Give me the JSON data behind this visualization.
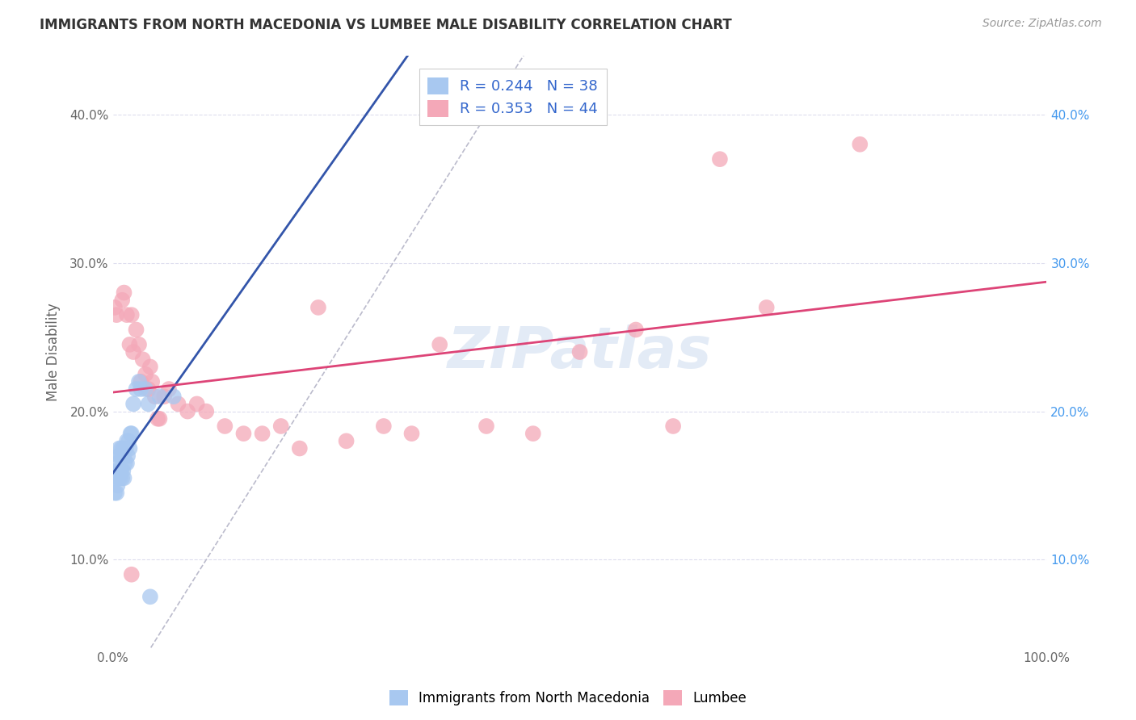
{
  "title": "IMMIGRANTS FROM NORTH MACEDONIA VS LUMBEE MALE DISABILITY CORRELATION CHART",
  "source": "Source: ZipAtlas.com",
  "ylabel": "Male Disability",
  "legend_labels": [
    "Immigrants from North Macedonia",
    "Lumbee"
  ],
  "r_north_mac": 0.244,
  "n_north_mac": 38,
  "r_lumbee": 0.353,
  "n_lumbee": 44,
  "xlim": [
    0.0,
    1.0
  ],
  "ylim": [
    0.04,
    0.44
  ],
  "ytick_vals": [
    0.1,
    0.2,
    0.3,
    0.4
  ],
  "ytick_labels": [
    "10.0%",
    "20.0%",
    "30.0%",
    "40.0%"
  ],
  "xtick_bottom_labels": [
    "0.0%",
    "100.0%"
  ],
  "color_north_mac": "#a8c8f0",
  "color_lumbee": "#f4a8b8",
  "line_color_north_mac": "#3355aa",
  "line_color_lumbee": "#dd4477",
  "diag_line_color": "#bbbbcc",
  "watermark": "ZIPatlas",
  "background_color": "#ffffff",
  "right_tick_color": "#4499ee",
  "north_mac_x": [
    0.002,
    0.003,
    0.004,
    0.004,
    0.005,
    0.005,
    0.006,
    0.006,
    0.007,
    0.007,
    0.008,
    0.008,
    0.009,
    0.009,
    0.01,
    0.01,
    0.011,
    0.011,
    0.012,
    0.012,
    0.013,
    0.014,
    0.015,
    0.015,
    0.016,
    0.017,
    0.018,
    0.019,
    0.02,
    0.022,
    0.025,
    0.028,
    0.03,
    0.035,
    0.038,
    0.05,
    0.065,
    0.04
  ],
  "north_mac_y": [
    0.145,
    0.155,
    0.145,
    0.16,
    0.15,
    0.165,
    0.155,
    0.17,
    0.16,
    0.175,
    0.155,
    0.17,
    0.16,
    0.175,
    0.155,
    0.17,
    0.16,
    0.175,
    0.155,
    0.17,
    0.165,
    0.175,
    0.165,
    0.18,
    0.17,
    0.18,
    0.175,
    0.185,
    0.185,
    0.205,
    0.215,
    0.22,
    0.215,
    0.215,
    0.205,
    0.21,
    0.21,
    0.075
  ],
  "lumbee_x": [
    0.002,
    0.004,
    0.01,
    0.012,
    0.015,
    0.018,
    0.02,
    0.022,
    0.025,
    0.028,
    0.03,
    0.032,
    0.035,
    0.038,
    0.04,
    0.042,
    0.045,
    0.048,
    0.05,
    0.055,
    0.06,
    0.07,
    0.08,
    0.09,
    0.1,
    0.12,
    0.14,
    0.16,
    0.18,
    0.2,
    0.22,
    0.25,
    0.29,
    0.32,
    0.35,
    0.4,
    0.45,
    0.5,
    0.56,
    0.6,
    0.65,
    0.7,
    0.8,
    0.02
  ],
  "lumbee_y": [
    0.27,
    0.265,
    0.275,
    0.28,
    0.265,
    0.245,
    0.265,
    0.24,
    0.255,
    0.245,
    0.22,
    0.235,
    0.225,
    0.215,
    0.23,
    0.22,
    0.21,
    0.195,
    0.195,
    0.21,
    0.215,
    0.205,
    0.2,
    0.205,
    0.2,
    0.19,
    0.185,
    0.185,
    0.19,
    0.175,
    0.27,
    0.18,
    0.19,
    0.185,
    0.245,
    0.19,
    0.185,
    0.24,
    0.255,
    0.19,
    0.37,
    0.27,
    0.38,
    0.09
  ]
}
